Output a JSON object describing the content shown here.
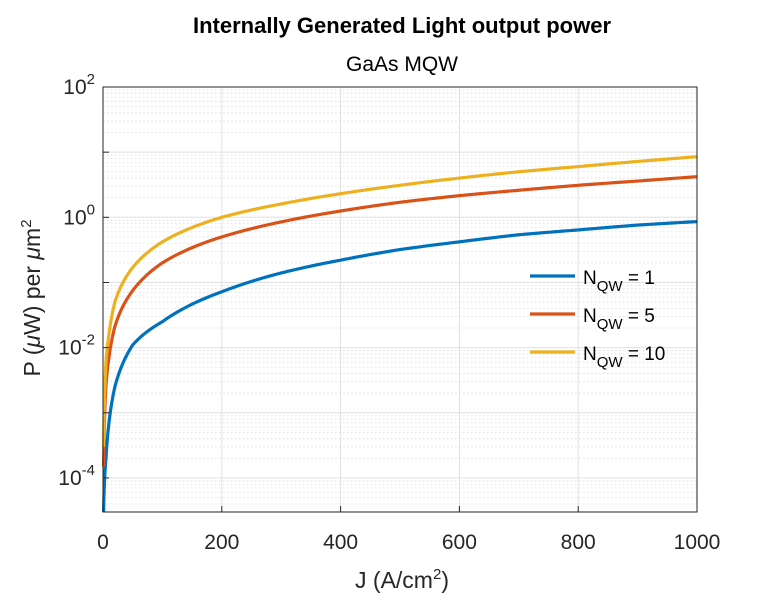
{
  "chart_data": {
    "type": "line",
    "title": "Internally Generated Light output power",
    "subtitle": "GaAs MQW",
    "xlabel_main": "J (A/cm",
    "xlabel_sup": "2",
    "xlabel_tail": ")",
    "ylabel_main": "P (",
    "ylabel_mu1": "μ",
    "ylabel_mid": "W) per ",
    "ylabel_mu2": "μ",
    "ylabel_m": "m",
    "ylabel_sup": "2",
    "xlim": [
      0,
      1000
    ],
    "ylim": [
      3e-05,
      100
    ],
    "yscale": "log",
    "grid": true,
    "minor_grid": true,
    "legend_position": "right",
    "x_ticks": [
      "0",
      "200",
      "400",
      "600",
      "800",
      "1000"
    ],
    "y_ticks": [
      {
        "base": "10",
        "exp": "-4",
        "value": 0.0001
      },
      {
        "base": "10",
        "exp": "-2",
        "value": 0.01
      },
      {
        "base": "10",
        "exp": "0",
        "value": 1
      },
      {
        "base": "10",
        "exp": "2",
        "value": 100
      }
    ],
    "series": [
      {
        "name_main": "N",
        "name_sub": "QW",
        "name_tail": " = 1",
        "color": "#0072BD",
        "x": [
          1,
          5,
          10,
          20,
          50,
          100,
          200,
          300,
          400,
          500,
          600,
          700,
          800,
          900,
          1000
        ],
        "y": [
          3e-05,
          0.0002,
          0.0007,
          0.0025,
          0.011,
          0.025,
          0.072,
          0.14,
          0.22,
          0.32,
          0.42,
          0.54,
          0.64,
          0.76,
          0.86
        ]
      },
      {
        "name_main": "N",
        "name_sub": "QW",
        "name_tail": " = 5",
        "color": "#D95319",
        "x": [
          1,
          5,
          10,
          20,
          50,
          100,
          200,
          300,
          400,
          500,
          600,
          700,
          800,
          900,
          1000
        ],
        "y": [
          0.00015,
          0.0026,
          0.007,
          0.021,
          0.075,
          0.2,
          0.5,
          0.85,
          1.25,
          1.7,
          2.15,
          2.6,
          3.1,
          3.6,
          4.2
        ]
      },
      {
        "name_main": "N",
        "name_sub": "QW",
        "name_tail": " = 10",
        "color": "#EDB120",
        "x": [
          1,
          5,
          10,
          20,
          50,
          100,
          200,
          300,
          400,
          500,
          600,
          700,
          800,
          900,
          1000
        ],
        "y": [
          0.0003,
          0.006,
          0.016,
          0.05,
          0.17,
          0.42,
          1.0,
          1.6,
          2.3,
          3.1,
          4.0,
          5.0,
          6.0,
          7.2,
          8.5
        ]
      }
    ]
  }
}
